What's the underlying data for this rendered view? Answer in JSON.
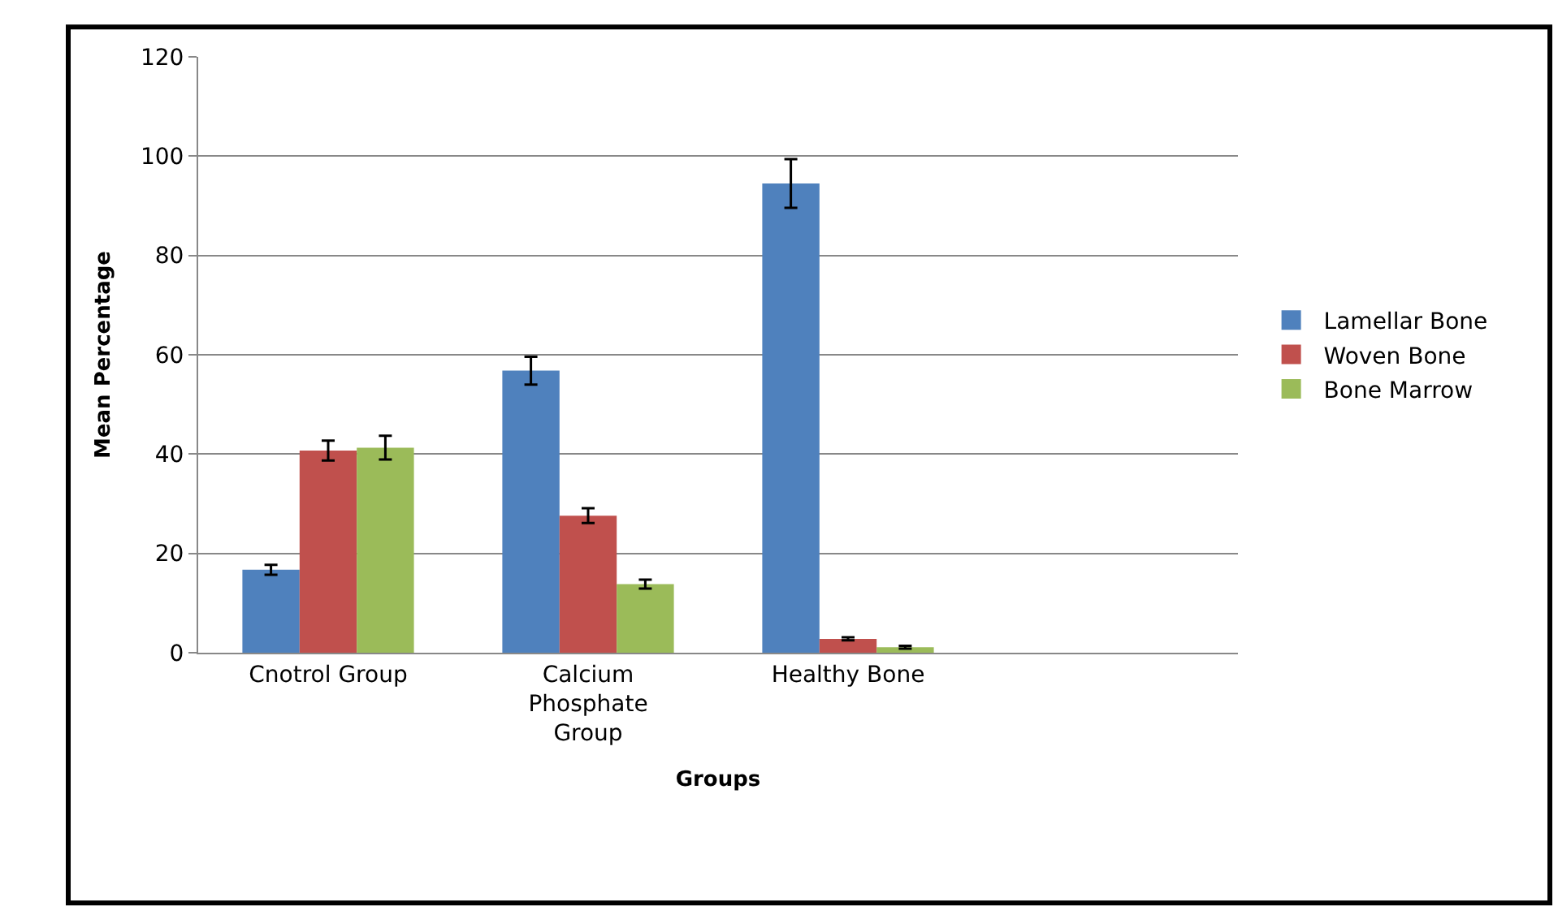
{
  "chart_data": {
    "type": "bar",
    "xlabel": "Groups",
    "ylabel": "Mean Percentage",
    "categories": [
      "Cnotrol Group",
      "Calcium\nPhosphate\nGroup",
      "Healthy Bone",
      null
    ],
    "series": [
      {
        "name": "Lamellar Bone",
        "color": "#4f81bd",
        "values": [
          16.7,
          56.8,
          94.5,
          null
        ],
        "errors": [
          1,
          2.8,
          4.9,
          null
        ]
      },
      {
        "name": "Woven Bone",
        "color": "#c0504d",
        "values": [
          40.7,
          27.6,
          2.8,
          null
        ],
        "errors": [
          2,
          1.5,
          0.3,
          null
        ]
      },
      {
        "name": "Bone Marrow",
        "color": "#9bbb59",
        "values": [
          41.3,
          13.8,
          1.1,
          null
        ],
        "errors": [
          2.4,
          0.9,
          0.3,
          null
        ]
      }
    ],
    "ylim": [
      0,
      120
    ],
    "yticks": [
      0,
      20,
      40,
      60,
      80,
      100,
      120
    ],
    "grid": "y",
    "legend": "right"
  }
}
